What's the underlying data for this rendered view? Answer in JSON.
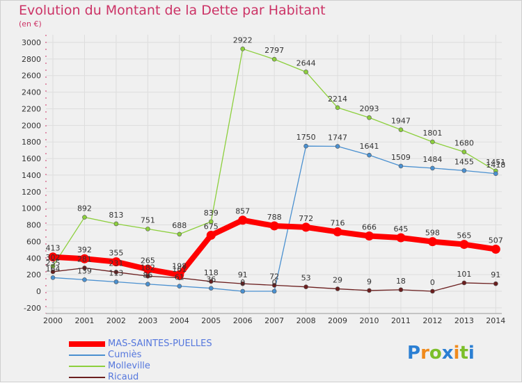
{
  "header": {
    "title": "Evolution du Montant de la Dette par Habitant",
    "unit": "(en €)"
  },
  "logo": {
    "letters": [
      "P",
      "r",
      "o",
      "x",
      "i",
      "t",
      "i"
    ],
    "colors": [
      "#2b7fd3",
      "#f08a1c",
      "#7cbf2a",
      "#2b7fd3",
      "#f08a1c",
      "#7cbf2a",
      "#2b7fd3"
    ]
  },
  "chart_data": {
    "type": "line",
    "title": "Evolution du Montant de la Dette par Habitant",
    "subtitle": "(en €)",
    "xlabel": "",
    "ylabel": "",
    "ylim": [
      -200,
      3000
    ],
    "yticks": [
      -200,
      0,
      200,
      400,
      600,
      800,
      1000,
      1200,
      1400,
      1600,
      1800,
      2000,
      2200,
      2400,
      2600,
      2800,
      3000
    ],
    "grid": true,
    "legend_position": "bottom-left",
    "categories": [
      "2000",
      "2001",
      "2002",
      "2003",
      "2004",
      "2005",
      "2006",
      "2007",
      "2008",
      "2009",
      "2010",
      "2011",
      "2012",
      "2013",
      "2014"
    ],
    "series": [
      {
        "name": "MAS-SAINTES-PUELLES",
        "color": "#ff0000",
        "values": [
          413,
          392,
          355,
          265,
          198,
          675,
          857,
          788,
          772,
          716,
          666,
          645,
          598,
          565,
          507
        ],
        "labels": [
          "413",
          "392",
          "355",
          "265",
          "198",
          "675",
          "857",
          "788",
          "772",
          "716",
          "666",
          "645",
          "598",
          "565",
          "507"
        ]
      },
      {
        "name": "Cumiès",
        "color": "#4a90d0",
        "values": [
          164,
          139,
          113,
          86,
          61,
          36,
          0,
          0,
          1750,
          1747,
          1641,
          1509,
          1484,
          1455,
          1418
        ],
        "labels": [
          "164",
          "139",
          "113",
          "86",
          "61",
          "36",
          "0",
          "0",
          "1750",
          "1747",
          "1641",
          "1509",
          "1484",
          "1455",
          "1418"
        ]
      },
      {
        "name": "Molleville",
        "color": "#8ccf3c",
        "values": [
          302,
          892,
          813,
          751,
          688,
          839,
          2922,
          2797,
          2644,
          2214,
          2093,
          1947,
          1801,
          1680,
          1451
        ],
        "labels": [
          "302",
          "892",
          "813",
          "751",
          "688",
          "839",
          "2922",
          "2797",
          "2644",
          "2214",
          "2093",
          "1947",
          "1801",
          "1680",
          "1451"
        ]
      },
      {
        "name": "Ricaud",
        "color": "#6b1e1e",
        "values": [
          235,
          281,
          231,
          182,
          161,
          118,
          91,
          72,
          53,
          29,
          9,
          18,
          0,
          101,
          91
        ],
        "labels": [
          "235",
          "281",
          "231",
          "182",
          "161",
          "118",
          "91",
          "72",
          "53",
          "29",
          "9",
          "18",
          "0",
          "101",
          "91"
        ]
      }
    ]
  }
}
